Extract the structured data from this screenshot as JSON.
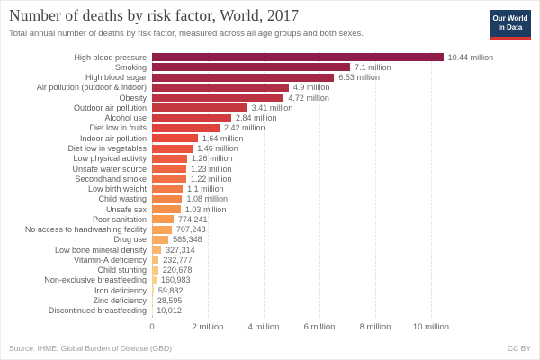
{
  "header": {
    "title": "Number of deaths by risk factor, World, 2017",
    "subtitle": "Total annual number of deaths by risk factor, measured across all age groups and both sexes.",
    "logo": {
      "line1": "Our World",
      "line2": "in Data",
      "bg_color": "#1d3d63",
      "accent_color": "#d8352f"
    }
  },
  "chart_data": {
    "type": "bar",
    "orientation": "horizontal",
    "title": "Number of deaths by risk factor, World, 2017",
    "xlabel": "",
    "ylabel": "",
    "xlim": [
      0,
      13600000
    ],
    "grid": "vertical-dotted",
    "legend": "none",
    "categories": [
      "High blood pressure",
      "Smoking",
      "High blood sugar",
      "Air pollution (outdoor & indoor)",
      "Obesity",
      "Outdoor air pollution",
      "Alcohol use",
      "Diet low in fruits",
      "Indoor air pollution",
      "Diet low in vegetables",
      "Low physical activity",
      "Unsafe water source",
      "Secondhand smoke",
      "Low birth weight",
      "Child wasting",
      "Unsafe sex",
      "Poor sanitation",
      "No access to handwashing facility",
      "Drug use",
      "Low bone mineral density",
      "Vitamin-A deficiency",
      "Child stunting",
      "Non-exclusive breastfeeding",
      "Iron deficiency",
      "Zinc deficiency",
      "Discontinued breastfeeding"
    ],
    "values": [
      10440000,
      7100000,
      6530000,
      4900000,
      4720000,
      3410000,
      2840000,
      2420000,
      1640000,
      1460000,
      1260000,
      1230000,
      1220000,
      1100000,
      1080000,
      1030000,
      774241,
      707248,
      585348,
      327314,
      232777,
      220678,
      160983,
      59882,
      28595,
      10012
    ],
    "value_labels": [
      "10.44 million",
      "7.1 million",
      "6.53 million",
      "4.9 million",
      "4.72 million",
      "3.41 million",
      "2.84 million",
      "2.42 million",
      "1.64 million",
      "1.46 million",
      "1.26 million",
      "1.23 million",
      "1.22 million",
      "1.1 million",
      "1.08 million",
      "1.03 million",
      "774,241",
      "707,248",
      "585,348",
      "327,314",
      "232,777",
      "220,678",
      "160,983",
      "59,882",
      "28,595",
      "10,012"
    ],
    "bar_colors": [
      "#8E1E49",
      "#992347",
      "#A42846",
      "#B02D44",
      "#BB3342",
      "#C63840",
      "#D13D3F",
      "#DD423D",
      "#E8473B",
      "#EA523D",
      "#EC5C40",
      "#EE6742",
      "#F07145",
      "#F27C47",
      "#F48649",
      "#F6914C",
      "#F89B4E",
      "#F9A458",
      "#F9AD62",
      "#FAB66C",
      "#FBBF77",
      "#FBC781",
      "#FCD08B",
      "#FDD995",
      "#FDE29F",
      "#FEEBA9"
    ],
    "x_ticks": [
      {
        "value": 0,
        "label": "0"
      },
      {
        "value": 2000000,
        "label": "2 million"
      },
      {
        "value": 4000000,
        "label": "4 million"
      },
      {
        "value": 6000000,
        "label": "6 million"
      },
      {
        "value": 8000000,
        "label": "8 million"
      },
      {
        "value": 10000000,
        "label": "10 million"
      }
    ]
  },
  "footer": {
    "source": "Source: IHME, Global Burden of Disease (GBD)",
    "license": "CC BY"
  }
}
